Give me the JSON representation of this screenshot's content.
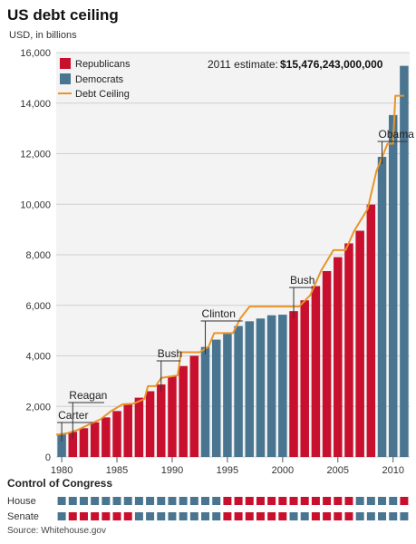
{
  "colors": {
    "republican": "#c8102e",
    "democrat": "#4a7590",
    "ceiling": "#e8952b",
    "grid": "#cfcfcf",
    "panel": "#f3f3f3"
  },
  "chart_data": {
    "type": "bar",
    "title": "US debt ceiling",
    "subtitle": "USD, in billions",
    "ylim": [
      0,
      16000
    ],
    "yticks": [
      0,
      2000,
      4000,
      6000,
      8000,
      10000,
      12000,
      14000,
      16000
    ],
    "ytick_labels": [
      "0",
      "2,000",
      "4,000",
      "6,000",
      "8,000",
      "10,000",
      "12,000",
      "14,000",
      "16,000"
    ],
    "xlim": [
      1979.5,
      2011.5
    ],
    "xticks": [
      1980,
      1985,
      1990,
      1995,
      2000,
      2005,
      2010
    ],
    "xtick_labels": [
      "1980",
      "1985",
      "1990",
      "1995",
      "2000",
      "2005",
      "2010"
    ],
    "legend": [
      "Republicans",
      "Democrats",
      "Debt Ceiling"
    ],
    "annotation": {
      "label": "2011 estimate:",
      "value": "$15,476,243,000,000"
    },
    "bars": [
      {
        "year": 1980,
        "value": 908,
        "party": "D"
      },
      {
        "year": 1981,
        "value": 995,
        "party": "R"
      },
      {
        "year": 1982,
        "value": 1137,
        "party": "R"
      },
      {
        "year": 1983,
        "value": 1372,
        "party": "R"
      },
      {
        "year": 1984,
        "value": 1565,
        "party": "R"
      },
      {
        "year": 1985,
        "value": 1817,
        "party": "R"
      },
      {
        "year": 1986,
        "value": 2121,
        "party": "R"
      },
      {
        "year": 1987,
        "value": 2346,
        "party": "R"
      },
      {
        "year": 1988,
        "value": 2601,
        "party": "R"
      },
      {
        "year": 1989,
        "value": 2868,
        "party": "R"
      },
      {
        "year": 1990,
        "value": 3206,
        "party": "R"
      },
      {
        "year": 1991,
        "value": 3598,
        "party": "R"
      },
      {
        "year": 1992,
        "value": 4002,
        "party": "R"
      },
      {
        "year": 1993,
        "value": 4351,
        "party": "D"
      },
      {
        "year": 1994,
        "value": 4643,
        "party": "D"
      },
      {
        "year": 1995,
        "value": 4921,
        "party": "D"
      },
      {
        "year": 1996,
        "value": 5181,
        "party": "D"
      },
      {
        "year": 1997,
        "value": 5369,
        "party": "D"
      },
      {
        "year": 1998,
        "value": 5478,
        "party": "D"
      },
      {
        "year": 1999,
        "value": 5606,
        "party": "D"
      },
      {
        "year": 2000,
        "value": 5629,
        "party": "D"
      },
      {
        "year": 2001,
        "value": 5770,
        "party": "R"
      },
      {
        "year": 2002,
        "value": 6198,
        "party": "R"
      },
      {
        "year": 2003,
        "value": 6760,
        "party": "R"
      },
      {
        "year": 2004,
        "value": 7355,
        "party": "R"
      },
      {
        "year": 2005,
        "value": 7905,
        "party": "R"
      },
      {
        "year": 2006,
        "value": 8451,
        "party": "R"
      },
      {
        "year": 2007,
        "value": 8950,
        "party": "R"
      },
      {
        "year": 2008,
        "value": 9986,
        "party": "R"
      },
      {
        "year": 2009,
        "value": 11876,
        "party": "D"
      },
      {
        "year": 2010,
        "value": 13529,
        "party": "D"
      },
      {
        "year": 2011,
        "value": 15476,
        "party": "D"
      }
    ],
    "ceiling": [
      [
        1979.5,
        880
      ],
      [
        1980.5,
        935
      ],
      [
        1981.5,
        1080
      ],
      [
        1982.5,
        1290
      ],
      [
        1983.5,
        1490
      ],
      [
        1984.5,
        1823
      ],
      [
        1985.5,
        2079
      ],
      [
        1986.5,
        2111
      ],
      [
        1987.5,
        2300
      ],
      [
        1987.8,
        2800
      ],
      [
        1988.5,
        2800
      ],
      [
        1989.0,
        3123
      ],
      [
        1990.5,
        3230
      ],
      [
        1990.8,
        4145
      ],
      [
        1992.5,
        4145
      ],
      [
        1993.3,
        4370
      ],
      [
        1993.8,
        4900
      ],
      [
        1995.5,
        4900
      ],
      [
        1996.2,
        5500
      ],
      [
        1997.0,
        5950
      ],
      [
        2001.5,
        5950
      ],
      [
        2002.5,
        6400
      ],
      [
        2003.5,
        7384
      ],
      [
        2004.6,
        8184
      ],
      [
        2005.7,
        8184
      ],
      [
        2006.5,
        8965
      ],
      [
        2007.7,
        9815
      ],
      [
        2008.5,
        11315
      ],
      [
        2009.5,
        12394
      ],
      [
        2010.0,
        12394
      ],
      [
        2010.2,
        14294
      ],
      [
        2011.0,
        14294
      ]
    ],
    "presidents": [
      {
        "name": "Carter",
        "year": 1980
      },
      {
        "name": "Reagan",
        "year": 1981
      },
      {
        "name": "Bush",
        "year": 1989
      },
      {
        "name": "Clinton",
        "year": 1993
      },
      {
        "name": "Bush",
        "year": 2001
      },
      {
        "name": "Obama",
        "year": 2009
      }
    ],
    "congress": {
      "title": "Control of Congress",
      "rows": [
        {
          "label": "House",
          "control": [
            "D",
            "D",
            "D",
            "D",
            "D",
            "D",
            "D",
            "D",
            "D",
            "D",
            "D",
            "D",
            "D",
            "D",
            "D",
            "R",
            "R",
            "R",
            "R",
            "R",
            "R",
            "R",
            "R",
            "R",
            "R",
            "R",
            "R",
            "D",
            "D",
            "D",
            "D",
            "R"
          ]
        },
        {
          "label": "Senate",
          "control": [
            "D",
            "R",
            "R",
            "R",
            "R",
            "R",
            "R",
            "D",
            "D",
            "D",
            "D",
            "D",
            "D",
            "D",
            "D",
            "R",
            "R",
            "R",
            "R",
            "R",
            "R",
            "D",
            "D",
            "R",
            "R",
            "R",
            "R",
            "D",
            "D",
            "D",
            "D",
            "D"
          ]
        }
      ]
    }
  },
  "source": "Source: Whitehouse.gov"
}
